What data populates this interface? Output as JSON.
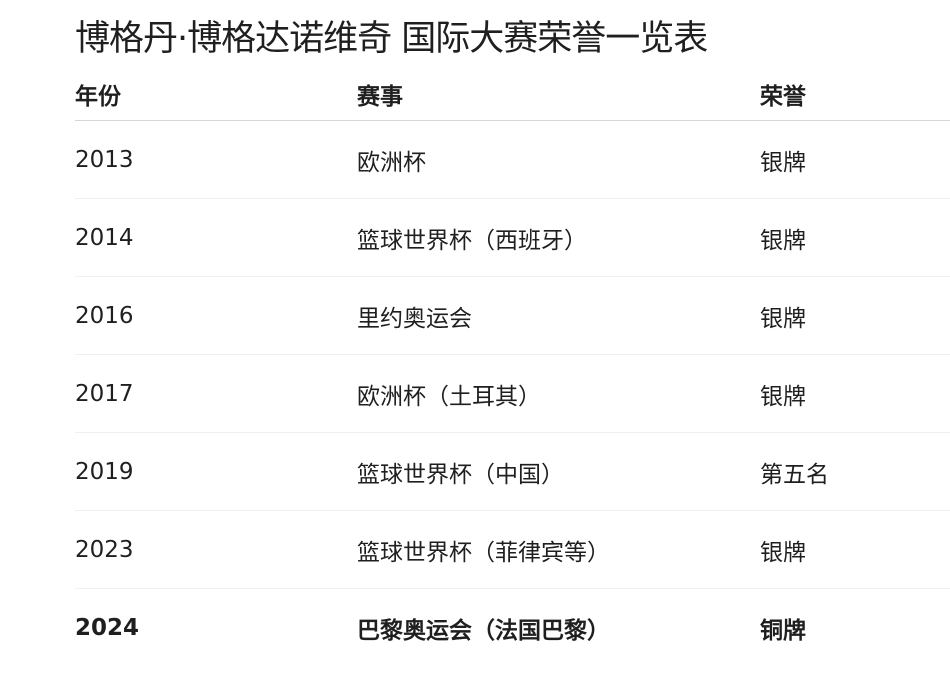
{
  "title": "博格丹·博格达诺维奇 国际大赛荣誉一览表",
  "table": {
    "headers": [
      "年份",
      "赛事",
      "荣誉"
    ],
    "rows": [
      [
        "2013",
        "欧洲杯",
        "银牌"
      ],
      [
        "2014",
        "篮球世界杯（西班牙）",
        "银牌"
      ],
      [
        "2016",
        "里约奥运会",
        "银牌"
      ],
      [
        "2017",
        "欧洲杯（土耳其）",
        "银牌"
      ],
      [
        "2019",
        "篮球世界杯（中国）",
        "第五名"
      ],
      [
        "2023",
        "篮球世界杯（菲律宾等）",
        "银牌"
      ],
      [
        "2024",
        "巴黎奥运会（法国巴黎）",
        "铜牌"
      ]
    ]
  }
}
